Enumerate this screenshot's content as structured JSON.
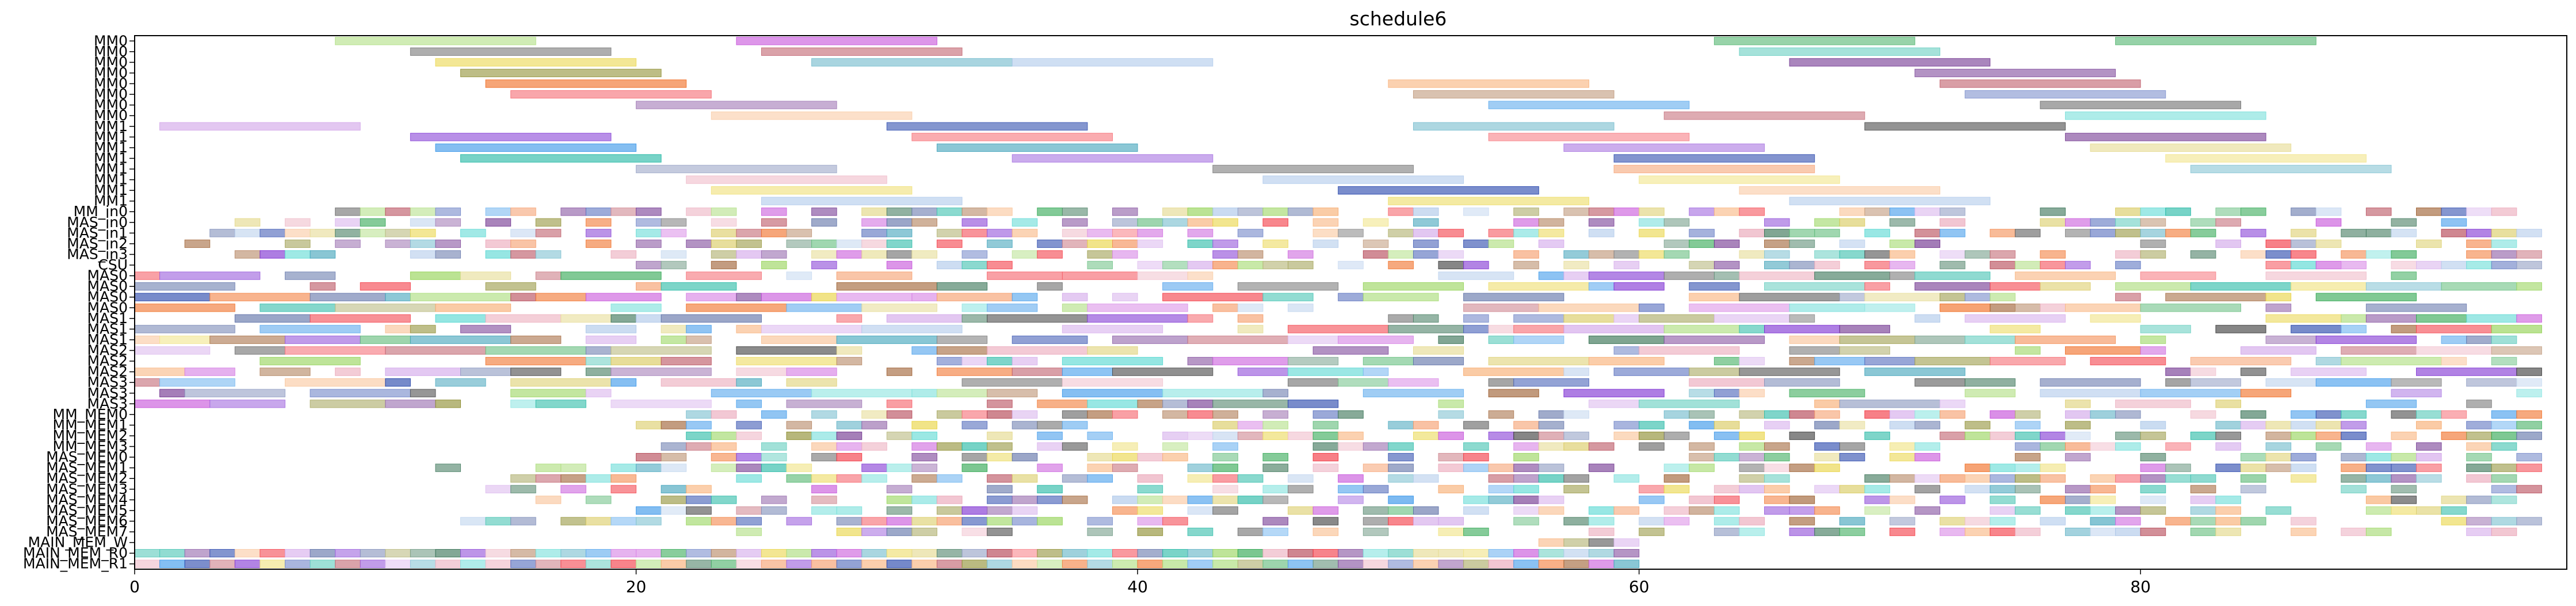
{
  "chart_data": {
    "type": "gantt",
    "title": "schedule6",
    "xlabel": "",
    "ylabel": "",
    "xlim": [
      0,
      97
    ],
    "x_ticks": [
      0,
      20,
      40,
      60,
      80
    ],
    "grid": false,
    "rows": [
      "MM0",
      "MM0",
      "MM0",
      "MM0",
      "MM0",
      "MM0",
      "MM0",
      "MM0",
      "MM1",
      "MM1",
      "MM1",
      "MM1",
      "MM1",
      "MM1",
      "MM1",
      "MM1",
      "MM_in0",
      "MAS_in0",
      "MAS_in1",
      "MAS_in2",
      "MAS_in3",
      "CSU",
      "MAS0",
      "MAS0",
      "MAS0",
      "MAS0",
      "MAS1",
      "MAS1",
      "MAS1",
      "MAS2",
      "MAS2",
      "MAS2",
      "MAS3",
      "MAS3",
      "MAS3",
      "MM_MEM0",
      "MM_MEM1",
      "MM_MEM2",
      "MM_MEM3",
      "MAS_MEM0",
      "MAS_MEM1",
      "MAS_MEM2",
      "MAS_MEM3",
      "MAS_MEM4",
      "MAS_MEM5",
      "MAS_MEM6",
      "MAS_MEM7",
      "MAIN_MEM_W",
      "MAIN_MEM_R0",
      "MAIN_MEM_R1"
    ],
    "long_task_rows": [
      {
        "row": 0,
        "tasks": [
          [
            8,
            16
          ],
          [
            24,
            32
          ],
          [
            63,
            71
          ],
          [
            79,
            87
          ]
        ]
      },
      {
        "row": 1,
        "tasks": [
          [
            11,
            19
          ],
          [
            25,
            33
          ],
          [
            64,
            72
          ]
        ]
      },
      {
        "row": 2,
        "tasks": [
          [
            12,
            20
          ],
          [
            27,
            35
          ],
          [
            35,
            43
          ],
          [
            66,
            74
          ]
        ]
      },
      {
        "row": 3,
        "tasks": [
          [
            13,
            21
          ],
          [
            71,
            79
          ]
        ]
      },
      {
        "row": 4,
        "tasks": [
          [
            14,
            22
          ],
          [
            50,
            58
          ],
          [
            72,
            80
          ]
        ]
      },
      {
        "row": 5,
        "tasks": [
          [
            15,
            23
          ],
          [
            51,
            59
          ],
          [
            73,
            81
          ]
        ]
      },
      {
        "row": 6,
        "tasks": [
          [
            20,
            28
          ],
          [
            54,
            62
          ],
          [
            76,
            84
          ]
        ]
      },
      {
        "row": 7,
        "tasks": [
          [
            23,
            31
          ],
          [
            61,
            69
          ],
          [
            77,
            85
          ]
        ]
      },
      {
        "row": 8,
        "tasks": [
          [
            1,
            9
          ],
          [
            30,
            38
          ],
          [
            51,
            59
          ],
          [
            69,
            77
          ]
        ]
      },
      {
        "row": 9,
        "tasks": [
          [
            11,
            19
          ],
          [
            31,
            39
          ],
          [
            54,
            62
          ],
          [
            77,
            85
          ]
        ]
      },
      {
        "row": 10,
        "tasks": [
          [
            12,
            20
          ],
          [
            32,
            40
          ],
          [
            57,
            65
          ],
          [
            78,
            86
          ]
        ]
      },
      {
        "row": 11,
        "tasks": [
          [
            13,
            21
          ],
          [
            35,
            43
          ],
          [
            59,
            67
          ],
          [
            81,
            89
          ]
        ]
      },
      {
        "row": 12,
        "tasks": [
          [
            20,
            28
          ],
          [
            43,
            51
          ],
          [
            59,
            67
          ],
          [
            82,
            90
          ]
        ]
      },
      {
        "row": 13,
        "tasks": [
          [
            22,
            30
          ],
          [
            45,
            53
          ],
          [
            60,
            68
          ]
        ]
      },
      {
        "row": 14,
        "tasks": [
          [
            23,
            31
          ],
          [
            48,
            56
          ],
          [
            64,
            72
          ]
        ]
      },
      {
        "row": 15,
        "tasks": [
          [
            25,
            33
          ],
          [
            50,
            58
          ],
          [
            66,
            74
          ]
        ]
      }
    ],
    "bar_rows_from": 16,
    "fill_until": 96,
    "random_seed": 6,
    "palette": [
      "#1f3fa8",
      "#f2313c",
      "#27a34a",
      "#7a2bd1",
      "#e9a1b4",
      "#1ab5a0",
      "#f06a1f",
      "#3b3b3b",
      "#8fd14f",
      "#2b8fe8",
      "#d8c85a",
      "#9a5a2a",
      "#c44ad8",
      "#5c6fa6",
      "#e8d23b",
      "#4fd6d0",
      "#b03a4a",
      "#2d6b4c",
      "#f7a86a",
      "#6a2b8a",
      "#a8c4e8",
      "#3aa0b8",
      "#cfa0e8",
      "#8a8a2a"
    ]
  }
}
